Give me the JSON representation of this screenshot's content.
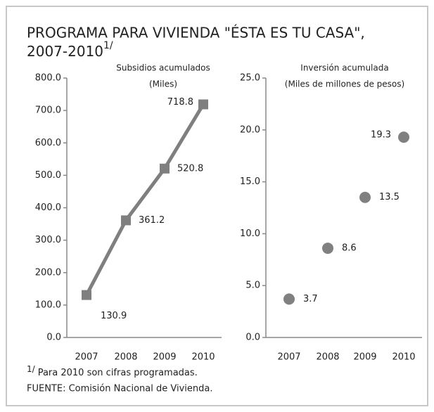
{
  "title": "PROGRAMA PARA VIVIENDA \"ÉSTA ES TU CASA\", 2007-2010",
  "title_note": "1/",
  "footnote_mark": "1/",
  "footnote": "Para 2010 son cifras programadas.",
  "source": "FUENTE: Comisión Nacional de Vivienda.",
  "chart_data": [
    {
      "type": "line",
      "title": "Subsidios acumulados",
      "subtitle": "(Miles)",
      "categories": [
        "2007",
        "2008",
        "2009",
        "2010"
      ],
      "values": [
        130.9,
        361.2,
        520.8,
        718.8
      ],
      "color": "#7f7f7f",
      "ylim": [
        0,
        800
      ],
      "yticks": [
        {
          "value": 0,
          "label": "0.0"
        },
        {
          "value": 100,
          "label": "100.0"
        },
        {
          "value": 200,
          "label": "200.0"
        },
        {
          "value": 300,
          "label": "300.0"
        },
        {
          "value": 400,
          "label": "400.0"
        },
        {
          "value": 500,
          "label": "500.0"
        },
        {
          "value": 600,
          "label": "600.0"
        },
        {
          "value": 700,
          "label": "700.0"
        },
        {
          "value": 800,
          "label": "800.0"
        }
      ]
    },
    {
      "type": "scatter",
      "title": "Inversión  acumulada",
      "subtitle": "(Miles de millones de pesos)",
      "categories": [
        "2007",
        "2008",
        "2009",
        "2010"
      ],
      "values": [
        3.7,
        8.6,
        13.5,
        19.3
      ],
      "color": "#808080",
      "ylim": [
        0,
        25
      ],
      "yticks": [
        {
          "value": 0,
          "label": "0.0"
        },
        {
          "value": 5,
          "label": "5.0"
        },
        {
          "value": 10,
          "label": "10.0"
        },
        {
          "value": 15,
          "label": "15.0"
        },
        {
          "value": 20,
          "label": "20.0"
        },
        {
          "value": 25,
          "label": "25.0"
        }
      ]
    }
  ]
}
